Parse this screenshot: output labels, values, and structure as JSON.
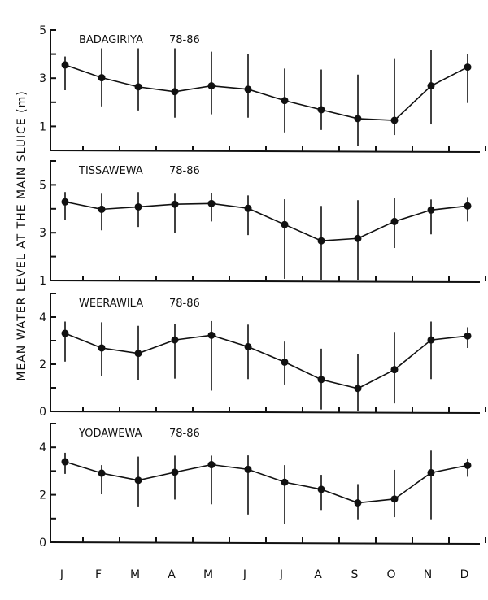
{
  "chart_data": {
    "type": "line",
    "ylabel": "MEAN WATER LEVEL AT THE MAIN SLUICE (m)",
    "categories": [
      "J",
      "F",
      "M",
      "A",
      "M",
      "J",
      "J",
      "A",
      "S",
      "O",
      "N",
      "D"
    ],
    "grid": false,
    "panels": [
      {
        "station": "BADAGIRIYA",
        "period": "78-86",
        "ylim": [
          0,
          5
        ],
        "yticks": [
          1,
          3,
          5
        ],
        "ytick_labels": [
          "1",
          "3",
          "5"
        ],
        "mean": [
          3.55,
          3.02,
          2.64,
          2.44,
          2.68,
          2.54,
          2.07,
          1.69,
          1.32,
          1.25,
          2.68,
          3.46
        ],
        "upper": [
          3.9,
          4.24,
          4.24,
          4.24,
          4.1,
          4.0,
          3.4,
          3.36,
          3.15,
          3.83,
          4.17,
          4.0
        ],
        "lower": [
          2.5,
          1.83,
          1.66,
          1.36,
          1.5,
          1.36,
          0.75,
          0.85,
          0.17,
          0.64,
          1.08,
          1.97
        ]
      },
      {
        "station": "TISSAWEWA",
        "period": "78-86",
        "ylim": [
          1,
          6
        ],
        "yticks": [
          1,
          3,
          5
        ],
        "ytick_labels": [
          "1",
          "3",
          "5"
        ],
        "mean": [
          4.29,
          3.98,
          4.08,
          4.19,
          4.22,
          4.02,
          3.34,
          2.66,
          2.76,
          3.47,
          3.95,
          4.12
        ],
        "upper": [
          4.7,
          4.63,
          4.7,
          4.63,
          4.66,
          4.56,
          4.4,
          4.12,
          4.36,
          4.46,
          4.39,
          4.49
        ],
        "lower": [
          3.54,
          3.1,
          3.24,
          3.0,
          3.47,
          2.9,
          1.07,
          1.0,
          1.0,
          2.36,
          2.93,
          3.47
        ]
      },
      {
        "station": "WEERAWILA",
        "period": "78-86",
        "ylim": [
          0,
          5
        ],
        "yticks": [
          0,
          2,
          4
        ],
        "ytick_labels": [
          "0",
          "2",
          "4"
        ],
        "mean": [
          3.31,
          2.69,
          2.46,
          3.03,
          3.23,
          2.74,
          2.09,
          1.35,
          0.97,
          1.77,
          3.03,
          3.2
        ],
        "upper": [
          3.81,
          3.78,
          3.63,
          3.71,
          3.83,
          3.68,
          2.96,
          2.66,
          2.42,
          3.37,
          3.81,
          3.57
        ],
        "lower": [
          2.11,
          1.49,
          1.34,
          1.39,
          0.88,
          1.37,
          1.14,
          0.08,
          0.0,
          0.34,
          1.37,
          2.69
        ]
      },
      {
        "station": "YODAWEWA",
        "period": "78-86",
        "ylim": [
          0,
          5
        ],
        "yticks": [
          0,
          2,
          4
        ],
        "ytick_labels": [
          "0",
          "2",
          "4"
        ],
        "mean": [
          3.39,
          2.91,
          2.61,
          2.95,
          3.27,
          3.07,
          2.53,
          2.23,
          1.66,
          1.82,
          2.93,
          3.24
        ],
        "upper": [
          3.77,
          3.25,
          3.61,
          3.65,
          3.65,
          3.66,
          3.25,
          2.84,
          2.45,
          3.05,
          3.86,
          3.53
        ],
        "lower": [
          2.88,
          2.02,
          1.51,
          1.8,
          1.6,
          1.17,
          0.77,
          1.36,
          0.97,
          1.06,
          0.97,
          2.76
        ]
      }
    ]
  }
}
